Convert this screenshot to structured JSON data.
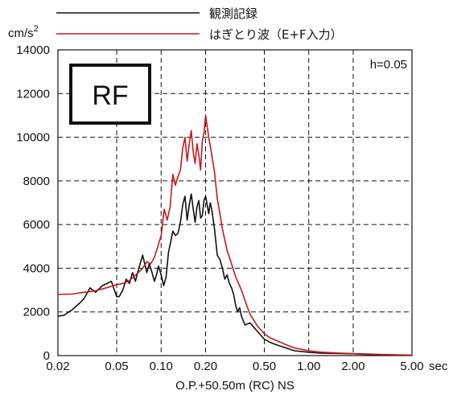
{
  "chart_data": {
    "type": "line",
    "title": "",
    "xlabel": "O.P.+50.50m (RC) NS",
    "x_unit": "sec",
    "y_unit_base": "cm/s",
    "y_unit_exp": "2",
    "panel_label": "RF",
    "annotation": "h=0.05",
    "xscale": "log",
    "xlim": [
      0.02,
      5.0
    ],
    "ylim": [
      0,
      14000
    ],
    "grid": true,
    "legend_position": "top",
    "x_ticks": [
      0.02,
      0.05,
      0.1,
      0.2,
      0.5,
      1.0,
      2.0,
      5.0
    ],
    "x_tick_labels": [
      "0.02",
      "0.05",
      "0.10",
      "0.20",
      "0.50",
      "1.00",
      "2.00",
      "5.00"
    ],
    "y_ticks": [
      0,
      2000,
      4000,
      6000,
      8000,
      10000,
      12000,
      14000
    ],
    "y_tick_labels": [
      "0",
      "2000",
      "4000",
      "6000",
      "8000",
      "10000",
      "12000",
      "14000"
    ],
    "series": [
      {
        "name": "観測記録",
        "color": "#111111",
        "x": [
          0.02,
          0.022,
          0.025,
          0.028,
          0.03,
          0.033,
          0.036,
          0.04,
          0.043,
          0.046,
          0.05,
          0.052,
          0.055,
          0.058,
          0.061,
          0.064,
          0.067,
          0.07,
          0.072,
          0.075,
          0.078,
          0.08,
          0.083,
          0.086,
          0.09,
          0.093,
          0.096,
          0.1,
          0.104,
          0.108,
          0.112,
          0.116,
          0.12,
          0.125,
          0.13,
          0.135,
          0.14,
          0.145,
          0.15,
          0.155,
          0.16,
          0.165,
          0.17,
          0.175,
          0.18,
          0.185,
          0.19,
          0.195,
          0.2,
          0.205,
          0.21,
          0.215,
          0.22,
          0.23,
          0.24,
          0.25,
          0.26,
          0.27,
          0.28,
          0.29,
          0.3,
          0.31,
          0.32,
          0.33,
          0.34,
          0.35,
          0.37,
          0.4,
          0.45,
          0.5,
          0.55,
          0.6,
          0.7,
          0.8,
          1.0,
          1.2,
          1.5,
          2.0,
          2.5,
          3.0,
          4.0,
          5.0
        ],
        "values": [
          1800,
          1850,
          2100,
          2400,
          2600,
          3100,
          2900,
          3200,
          3300,
          3400,
          2700,
          2700,
          3000,
          3500,
          3300,
          3800,
          3400,
          3900,
          4200,
          4600,
          4100,
          3800,
          4200,
          3900,
          3400,
          3700,
          4100,
          3700,
          3200,
          3600,
          4700,
          5200,
          5700,
          5500,
          5600,
          6100,
          6900,
          7300,
          6200,
          6900,
          7400,
          6700,
          6100,
          6800,
          7100,
          6300,
          6400,
          7100,
          7300,
          6900,
          6500,
          7000,
          6700,
          5800,
          4600,
          4400,
          4000,
          3500,
          3700,
          3300,
          3100,
          2800,
          2300,
          2000,
          2200,
          1800,
          1400,
          1500,
          1100,
          750,
          600,
          500,
          350,
          220,
          150,
          110,
          100,
          80,
          50,
          35,
          25,
          20
        ]
      },
      {
        "name": "はぎとり波（E+F入力）",
        "color": "#c8171e",
        "x": [
          0.02,
          0.025,
          0.03,
          0.035,
          0.04,
          0.045,
          0.05,
          0.055,
          0.06,
          0.065,
          0.07,
          0.075,
          0.08,
          0.085,
          0.09,
          0.095,
          0.1,
          0.105,
          0.11,
          0.115,
          0.12,
          0.125,
          0.13,
          0.135,
          0.14,
          0.145,
          0.15,
          0.155,
          0.16,
          0.165,
          0.17,
          0.175,
          0.18,
          0.185,
          0.19,
          0.195,
          0.2,
          0.205,
          0.21,
          0.215,
          0.22,
          0.23,
          0.24,
          0.25,
          0.26,
          0.28,
          0.3,
          0.32,
          0.35,
          0.38,
          0.4,
          0.45,
          0.5,
          0.55,
          0.6,
          0.7,
          0.8,
          1.0,
          1.2,
          1.5,
          2.0,
          2.5,
          3.0,
          4.0,
          5.0
        ],
        "values": [
          2800,
          2820,
          2900,
          2950,
          3050,
          3150,
          3250,
          3300,
          3400,
          3600,
          3800,
          4000,
          4300,
          4200,
          4500,
          5000,
          5500,
          6700,
          6200,
          6800,
          8300,
          7800,
          8200,
          8500,
          9500,
          10000,
          8900,
          9700,
          10300,
          9300,
          8800,
          9700,
          9200,
          8500,
          9800,
          10200,
          11000,
          10500,
          10000,
          9600,
          9200,
          8400,
          7200,
          6500,
          5800,
          4800,
          4200,
          3600,
          3000,
          2300,
          1900,
          1350,
          1000,
          800,
          700,
          500,
          350,
          220,
          160,
          120,
          90,
          70,
          50,
          35,
          25
        ]
      }
    ]
  }
}
